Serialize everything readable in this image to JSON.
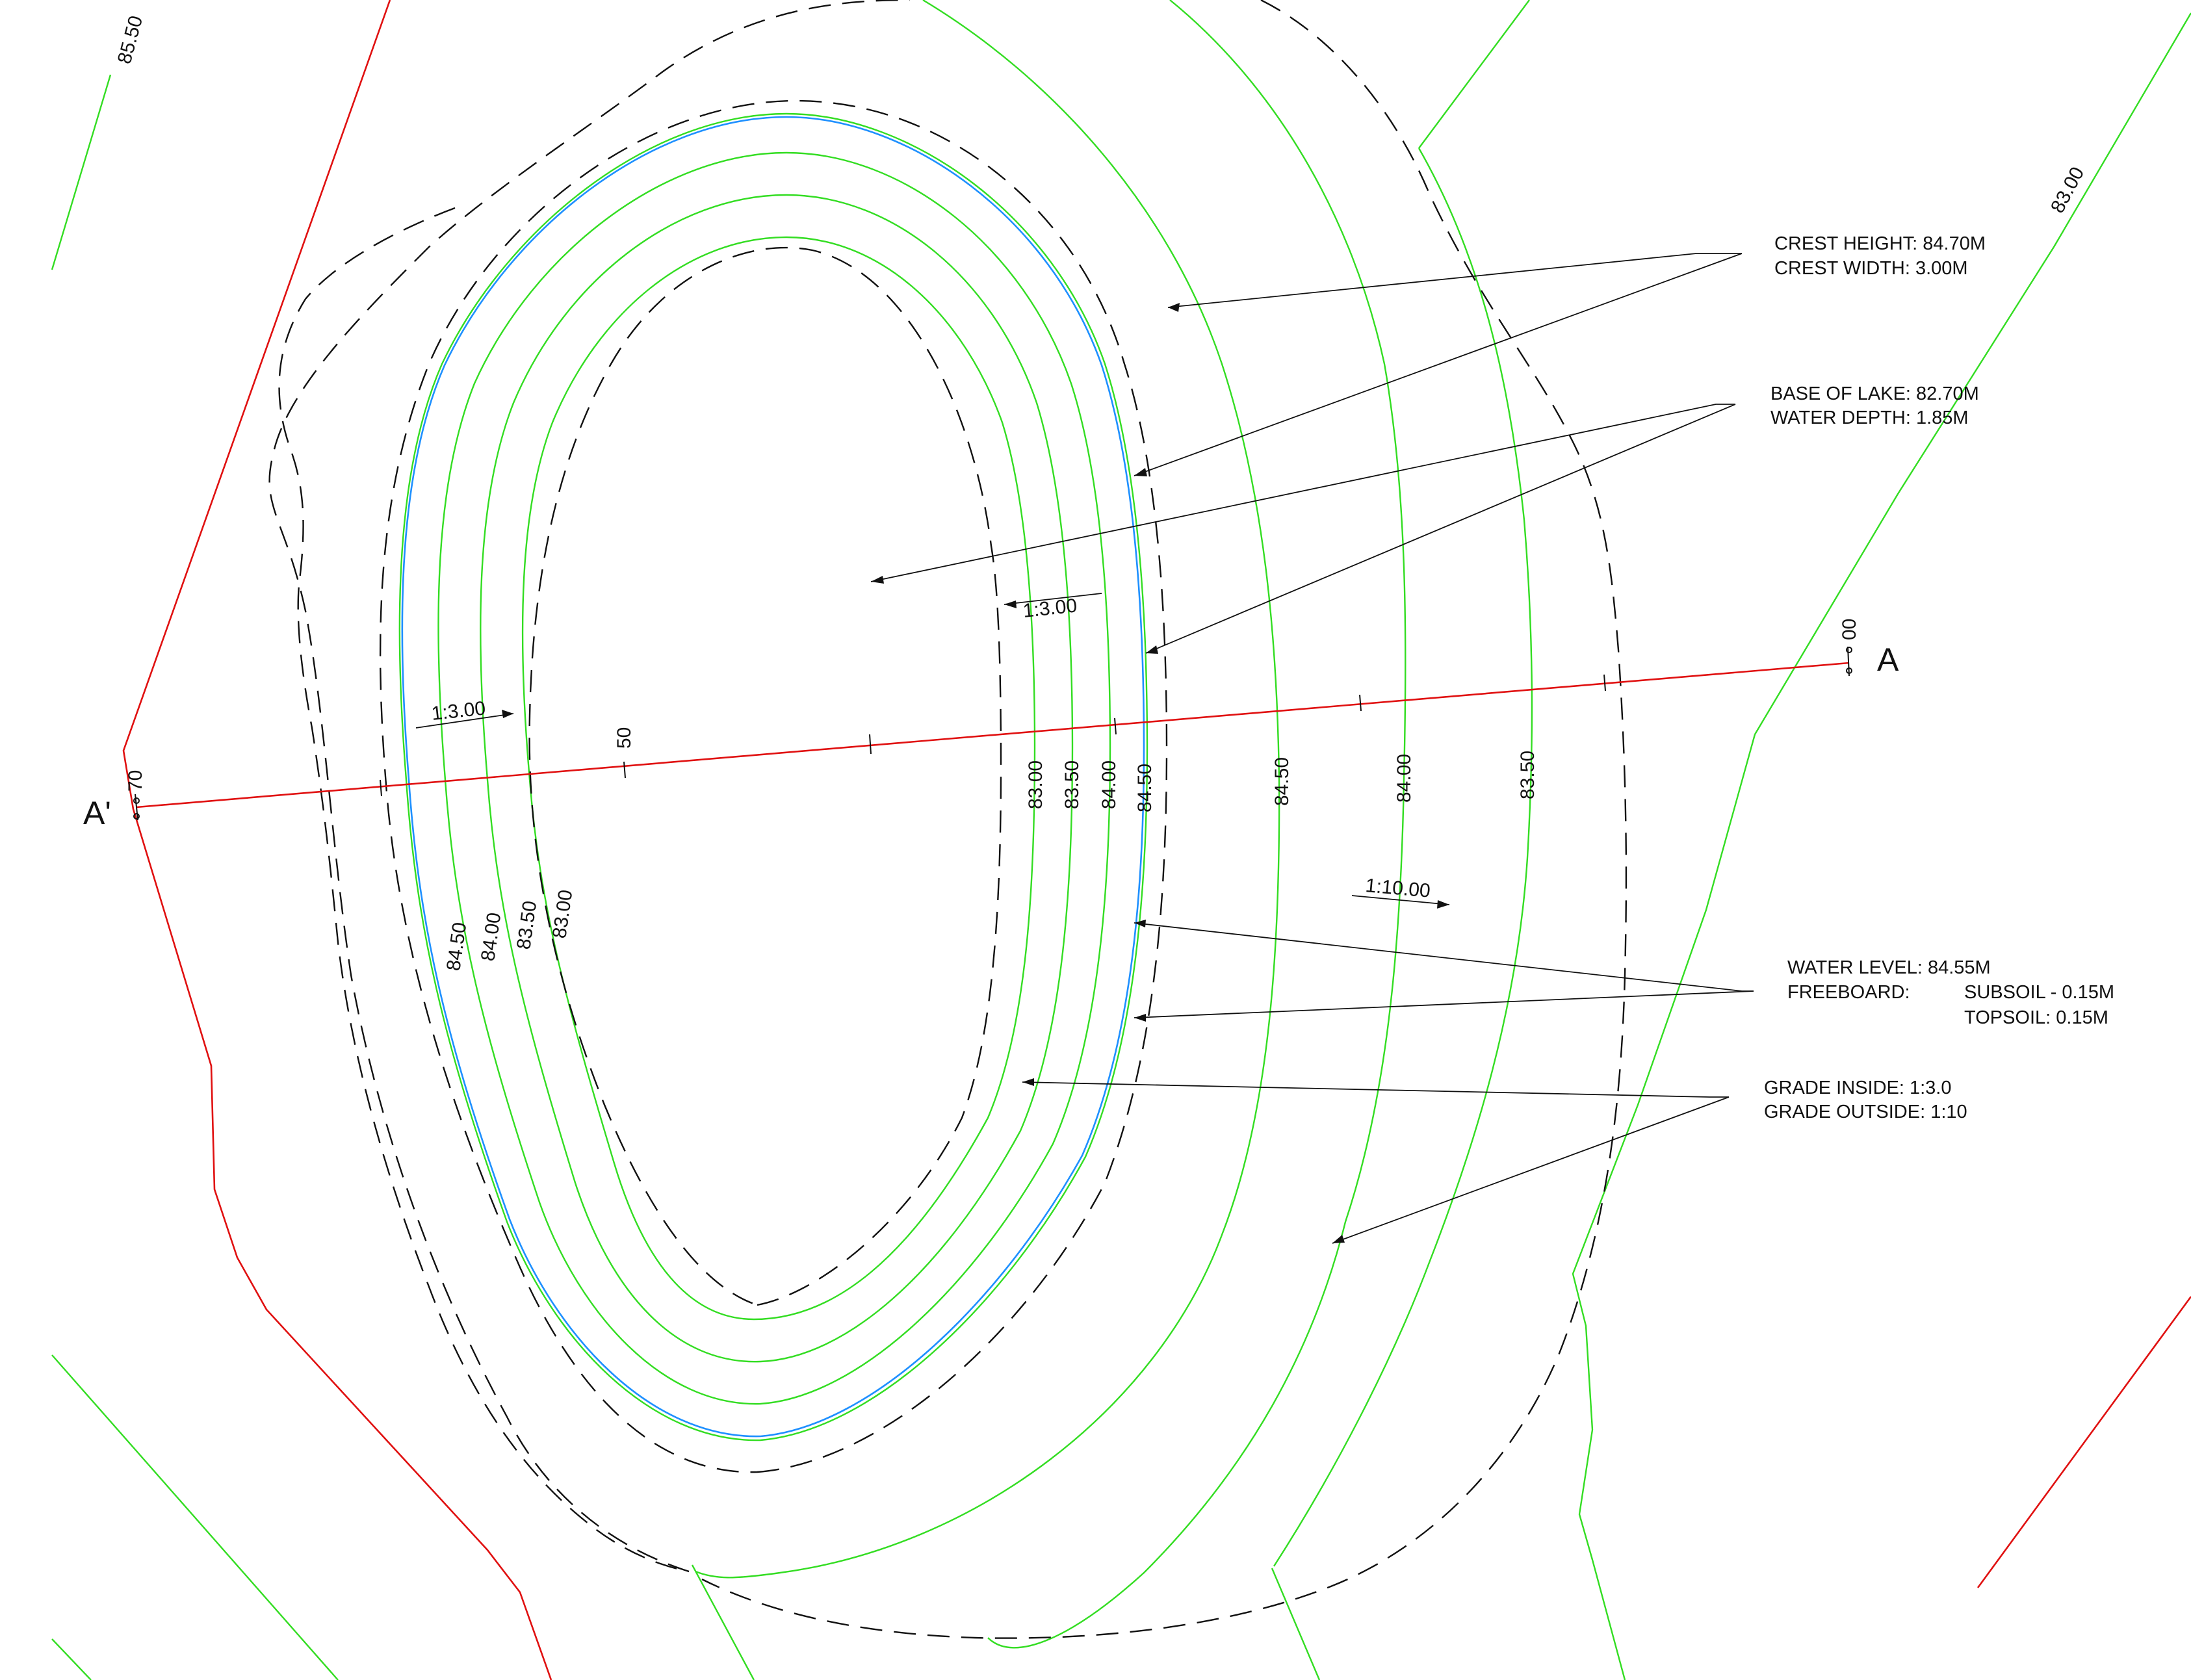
{
  "notes": {
    "crest_height": "CREST HEIGHT: 84.70M",
    "crest_width": "CREST WIDTH: 3.00M",
    "base_of_lake": "BASE OF LAKE: 82.70M",
    "water_depth": "WATER DEPTH: 1.85M",
    "water_level": "WATER LEVEL: 84.55M",
    "freeboard": "FREEBOARD:",
    "subsoil": "SUBSOIL - 0.15M",
    "topsoil": "TOPSOIL: 0.15M",
    "grade_inside": "GRADE INSIDE: 1:3.0",
    "grade_outside": "GRADE OUTSIDE: 1:10"
  },
  "section": {
    "start_label": "A",
    "end_label": "A'",
    "chainage_start": "00",
    "chainage_mid": "50",
    "chainage_end": "70"
  },
  "slopes": {
    "inside_left": "1:3.00",
    "inside_right": "1:3.00",
    "outside": "1:10.00"
  },
  "contour_labels": {
    "top_left": "85.50",
    "top_right": "83.00",
    "right_83_00": "83.00",
    "right_83_50": "83.50",
    "right_84_00": "84.00",
    "right_84_50": "84.50",
    "outer_84_50": "84.50",
    "outer_84_00": "84.00",
    "outer_83_50": "83.50",
    "left_84_50": "84.50",
    "left_84_00": "84.00",
    "left_83_50": "83.50",
    "left_83_00": "83.00"
  },
  "colors": {
    "contour": "#33dd22",
    "section_line": "#e01010",
    "water_edge": "#1e90ff",
    "linework": "#111111"
  }
}
